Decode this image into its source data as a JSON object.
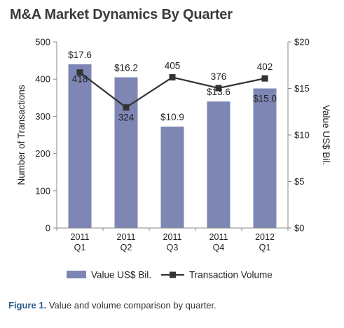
{
  "title": "M&A Market Dynamics By Quarter",
  "caption": {
    "label": "Figure 1.",
    "text": "Value and volume comparison by quarter."
  },
  "colors": {
    "bar": "#7e86b3",
    "line": "#333333",
    "axis": "#888888"
  },
  "chart_data": {
    "type": "bar",
    "categories": [
      [
        "2011",
        "Q1"
      ],
      [
        "2011",
        "Q2"
      ],
      [
        "2011",
        "Q3"
      ],
      [
        "2011",
        "Q4"
      ],
      [
        "2012",
        "Q1"
      ]
    ],
    "series": [
      {
        "name": "Value US$ Bil.",
        "type": "bar",
        "axis": "right",
        "values": [
          17.6,
          16.2,
          10.9,
          13.6,
          15.0
        ],
        "labels": [
          "$17.6",
          "$16.2",
          "$10.9",
          "$13.6",
          "$15.0"
        ]
      },
      {
        "name": "Transaction Volume",
        "type": "line",
        "axis": "left",
        "values": [
          418,
          324,
          405,
          376,
          402
        ],
        "labels": [
          "418",
          "324",
          "405",
          "376",
          "402"
        ]
      }
    ],
    "ylabel": "Number of Transactions",
    "y2label": "Value US$ Bil.",
    "ylim": [
      0,
      500
    ],
    "y2lim": [
      0,
      20
    ],
    "yticks": [
      "0",
      "100",
      "200",
      "300",
      "400",
      "500"
    ],
    "y2ticks": [
      "$0",
      "$5",
      "$10",
      "$15",
      "$20"
    ],
    "grid": false,
    "legend_position": "bottom"
  }
}
